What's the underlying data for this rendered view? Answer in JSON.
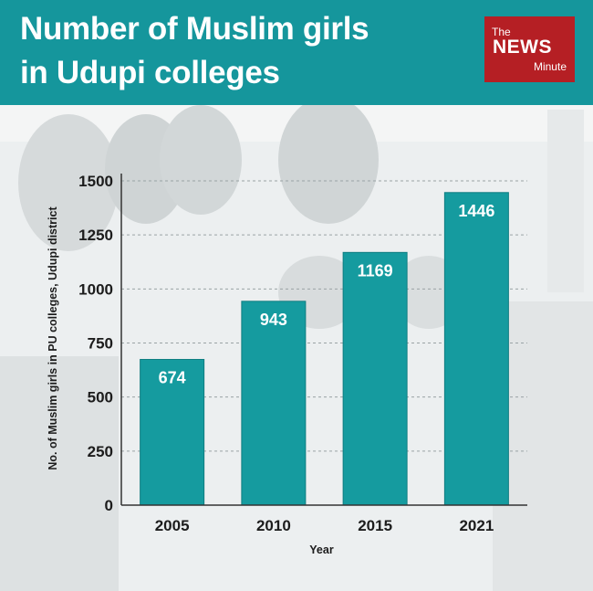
{
  "header": {
    "title_line1": "Number of Muslim girls",
    "title_line2": "in Udupi colleges",
    "brand": "#15969c"
  },
  "logo": {
    "the": "The",
    "news": "NEWS",
    "minute": "Minute",
    "color": "#b51f24"
  },
  "chart_data": {
    "type": "bar",
    "categories": [
      "2005",
      "2010",
      "2015",
      "2021"
    ],
    "values": [
      674,
      943,
      1169,
      1446
    ],
    "value_labels": [
      "674",
      "943",
      "1169",
      "1446"
    ],
    "xlabel": "Year",
    "ylabel": "No. of Muslim girls in PU colleges, Udupi district",
    "ylim": [
      0,
      1500
    ],
    "yticks": [
      0,
      250,
      500,
      750,
      1000,
      1250,
      1500
    ],
    "ytick_labels": [
      "0",
      "250",
      "500",
      "750",
      "1000",
      "1250",
      "1500"
    ],
    "grid": "dashed horizontal",
    "bar_color": "#159b9f"
  }
}
